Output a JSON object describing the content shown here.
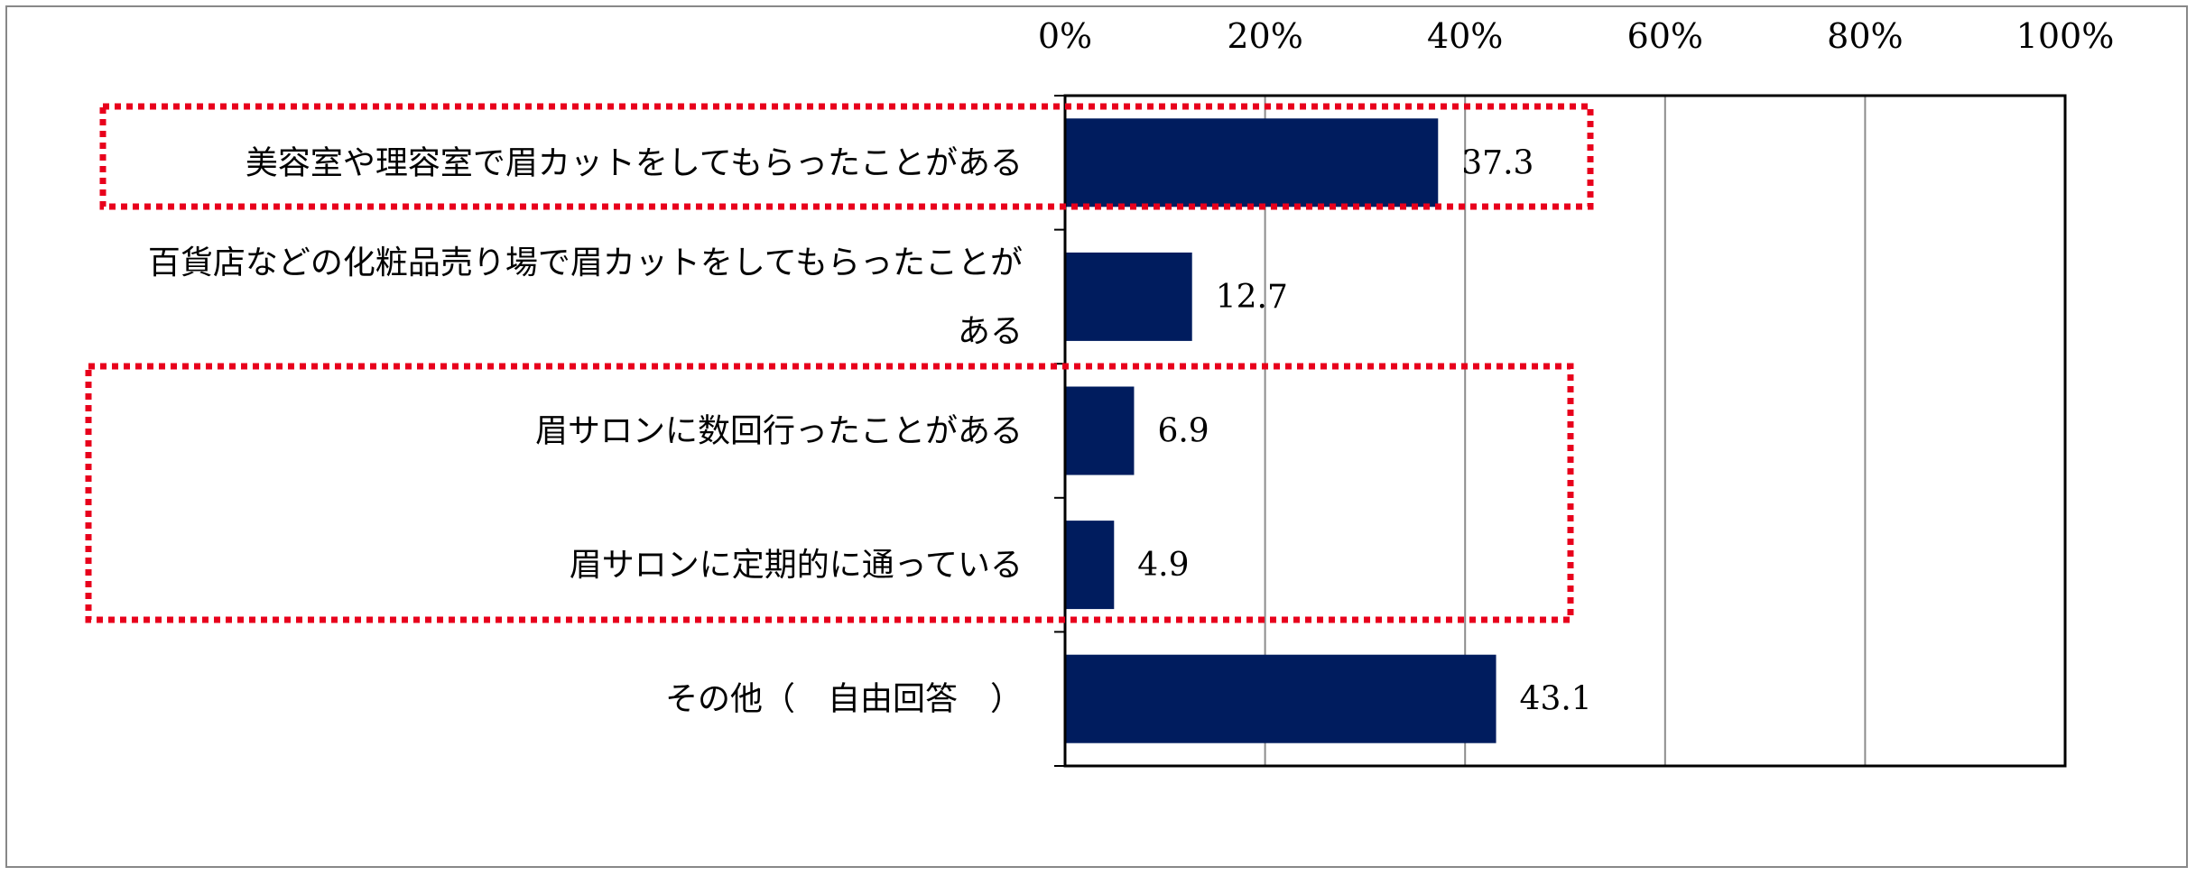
{
  "chart_data": {
    "type": "bar",
    "orientation": "horizontal",
    "categories": [
      [
        "美容室や理容室で眉カットをしてもらったことがある"
      ],
      [
        "百貨店などの化粧品売り場で眉カットをしてもらったことが",
        "ある"
      ],
      [
        "眉サロンに数回行ったことがある"
      ],
      [
        "眉サロンに定期的に通っている"
      ],
      [
        "その他（　自由回答　）"
      ]
    ],
    "values": [
      37.3,
      12.7,
      6.9,
      4.9,
      43.1
    ],
    "value_labels": [
      "37.3",
      "12.7",
      "6.9",
      "4.9",
      "43.1"
    ],
    "xlim": [
      0,
      100
    ],
    "xticks": [
      0,
      20,
      40,
      60,
      80,
      100
    ],
    "xtick_labels": [
      "0%",
      "20%",
      "40%",
      "60%",
      "80%",
      "100%"
    ],
    "axis_position": "top",
    "grid": true,
    "legend": "none",
    "highlight_groups": [
      [
        0
      ],
      [
        2,
        3
      ]
    ],
    "colors": {
      "bar": "#001C5E",
      "highlight": "#E8001C",
      "grid": "#8C8C8C",
      "axis": "#000000",
      "text": "#000000",
      "frame": "#888888"
    }
  }
}
